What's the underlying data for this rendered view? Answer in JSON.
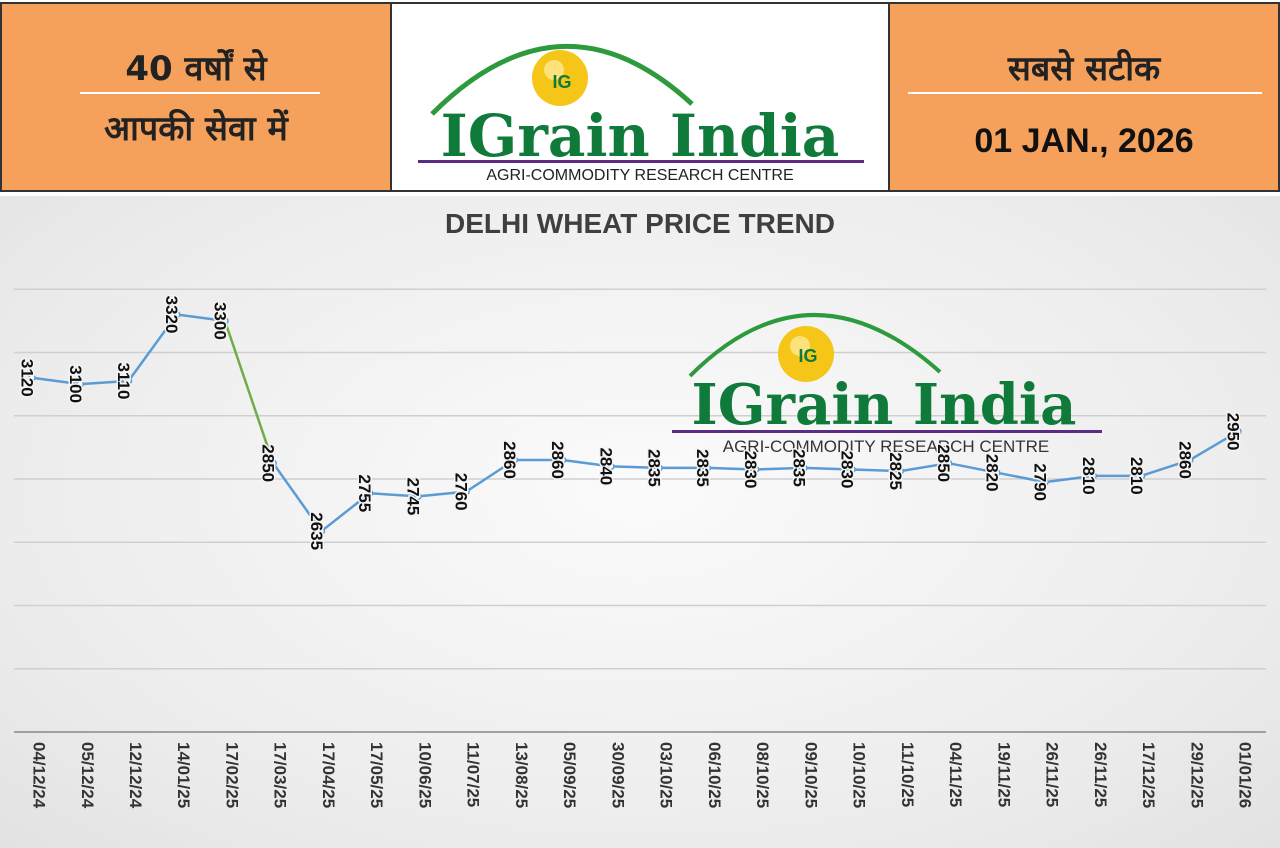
{
  "header": {
    "left_line1": "40 वर्षों से",
    "left_line2": "आपकी सेवा में",
    "right_line1": "सबसे सटीक",
    "date": "01 JAN., 2026"
  },
  "logo": {
    "brand": "IGrain India",
    "subtitle": "AGRI-COMMODITY RESEARCH CENTRE",
    "emblem": "IG"
  },
  "colors": {
    "header_orange": "#f6a15b",
    "brand_green": "#0f7a3a",
    "arc_green": "#2e9a3e",
    "line_blue": "#5b9bd5",
    "line_green": "#70ad47",
    "gold": "#f5c518"
  },
  "chart_data": {
    "type": "line",
    "title": "DELHI WHEAT PRICE TREND",
    "categories": [
      "04/12/24",
      "05/12/24",
      "12/12/24",
      "14/01/25",
      "17/02/25",
      "17/03/25",
      "17/04/25",
      "17/05/25",
      "10/06/25",
      "11/07/25",
      "13/08/25",
      "05/09/25",
      "30/09/25",
      "03/10/25",
      "06/10/25",
      "08/10/25",
      "09/10/25",
      "10/10/25",
      "11/10/25",
      "04/11/25",
      "19/11/25",
      "26/11/25",
      "26/11/25",
      "17/12/25",
      "29/12/25",
      "01/01/26"
    ],
    "values": [
      3120,
      3100,
      3110,
      3320,
      3300,
      2850,
      2635,
      2755,
      2745,
      2760,
      2860,
      2860,
      2840,
      2835,
      2835,
      2830,
      2835,
      2830,
      2825,
      2850,
      2820,
      2790,
      2810,
      2810,
      2860,
      2950
    ],
    "ylim": [
      2000,
      3600
    ],
    "gridlines": [
      2200,
      2400,
      2600,
      2800,
      3000,
      3200,
      3400
    ],
    "grid": true,
    "legend": "none",
    "highlight_segment": [
      4,
      5
    ]
  }
}
